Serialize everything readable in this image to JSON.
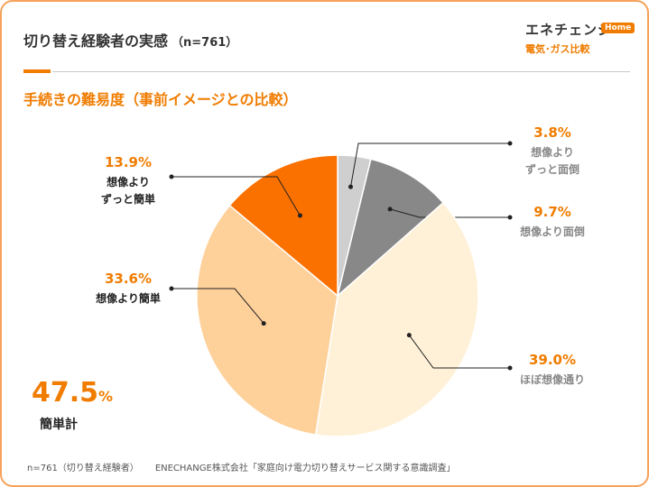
{
  "header": {
    "title": "切り替え経験者の実感",
    "sample": "（n=761）"
  },
  "logo": {
    "main": "エネチェンジ",
    "badge": "Home",
    "sub": "電気･ガス比較"
  },
  "subtitle": "手続きの難易度（事前イメージとの比較）",
  "summary": {
    "value": "47.5",
    "unit": "%",
    "label": "簡単計"
  },
  "footnote": {
    "sample": "n=761（切り替え経験者）",
    "source": "ENECHANGE株式会社「家庭向け電力切り替えサービス関する意識調査」"
  },
  "colors": {
    "accent": "#f07c00",
    "border": "#f6a25a",
    "grey_text": "#888888"
  },
  "chart_data": {
    "type": "pie",
    "start": "12 o'clock, clockwise",
    "slices": [
      {
        "value": 3.8,
        "pct_label": "3.8%",
        "label": [
          "想像より",
          "ずっと面倒"
        ],
        "color": "#cfcfcf",
        "label_color": "#f07c00",
        "text_color": "#888888"
      },
      {
        "value": 9.7,
        "pct_label": "9.7%",
        "label": [
          "想像より面倒"
        ],
        "color": "#888888",
        "label_color": "#f07c00",
        "text_color": "#888888"
      },
      {
        "value": 39.0,
        "pct_label": "39.0%",
        "label": [
          "ほぼ想像通り"
        ],
        "color": "#fff1d7",
        "label_color": "#f07c00",
        "text_color": "#888888"
      },
      {
        "value": 33.6,
        "pct_label": "33.6%",
        "label": [
          "想像より簡単"
        ],
        "color": "#fed09a",
        "label_color": "#f07c00",
        "text_color": "#222222"
      },
      {
        "value": 13.9,
        "pct_label": "13.9%",
        "label": [
          "想像より",
          "ずっと簡単"
        ],
        "color": "#fb7100",
        "label_color": "#f07c00",
        "text_color": "#222222"
      }
    ]
  }
}
